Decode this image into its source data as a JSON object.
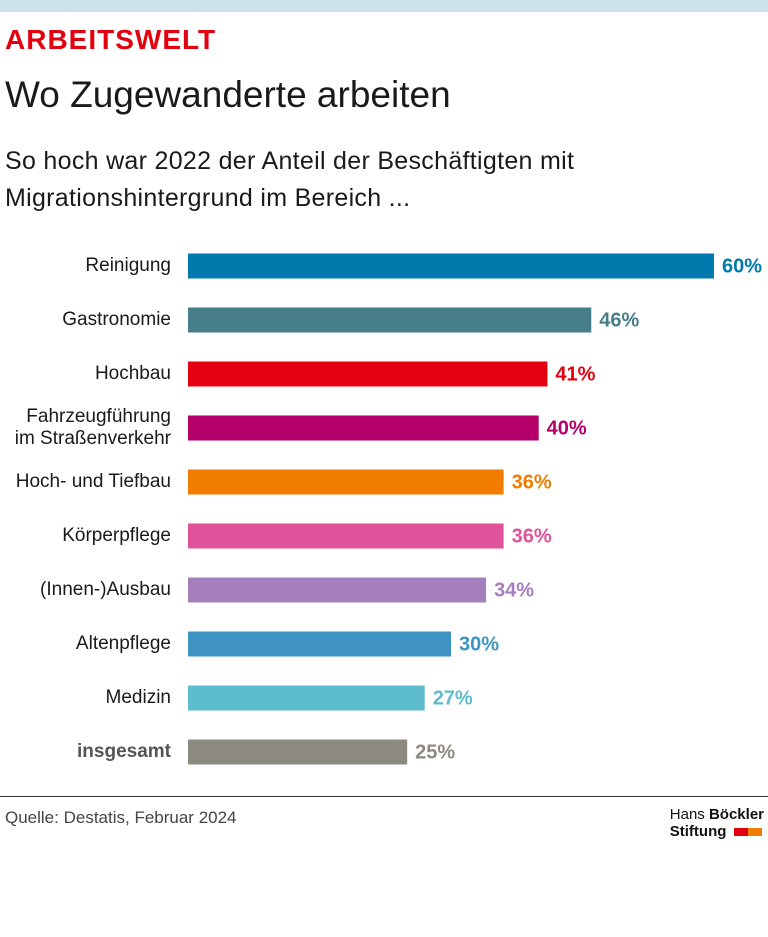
{
  "chart_data": {
    "type": "bar",
    "kicker": "ARBEITSWELT",
    "title": "Wo Zugewanderte arbeiten",
    "subtitle": "So hoch war 2022 der Anteil der Beschäftigten mit\nMigrationshintergrund im Bereich ...",
    "categories": [
      "Reinigung",
      "Gastronomie",
      "Hochbau",
      "Fahrzeugführung\nim Straßenverkehr",
      "Hoch- und Tiefbau",
      "Körperpflege",
      "(Innen-)Ausbau",
      "Altenpflege",
      "Medizin",
      "insgesamt"
    ],
    "values": [
      60,
      46,
      41,
      40,
      36,
      36,
      34,
      30,
      27,
      25
    ],
    "value_labels": [
      "60%",
      "46%",
      "41%",
      "40%",
      "36%",
      "36%",
      "34%",
      "30%",
      "27%",
      "25%"
    ],
    "colors": [
      "#0079ad",
      "#467e8a",
      "#e3000f",
      "#b5006a",
      "#f07d00",
      "#e0529a",
      "#a57fbd",
      "#3f93c2",
      "#5dbccd",
      "#8c8a80"
    ],
    "source": "Quelle: Destatis, Februar 2024",
    "logo": [
      "Hans",
      "Böckler",
      "Stiftung"
    ]
  }
}
